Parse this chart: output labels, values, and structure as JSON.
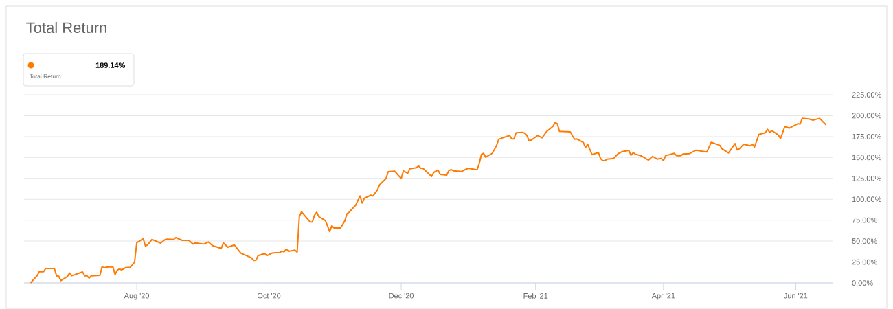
{
  "chart_data": {
    "type": "line",
    "title": "Total Return",
    "annotations": [
      "189.14%",
      "Total Return"
    ],
    "color": "#ff7a00",
    "grid": "y",
    "xlim": [
      "2020-06-10",
      "2021-06-18"
    ],
    "xticks": [
      {
        "value": "2020-08-01",
        "label": "Aug '20"
      },
      {
        "value": "2020-10-01",
        "label": "Oct '20"
      },
      {
        "value": "2020-12-01",
        "label": "Dec '20"
      },
      {
        "value": "2021-02-01",
        "label": "Feb '21"
      },
      {
        "value": "2021-04-01",
        "label": "Apr '21"
      },
      {
        "value": "2021-06-01",
        "label": "Jun '21"
      }
    ],
    "ylim": [
      0,
      225
    ],
    "yticks": [
      {
        "value": 0,
        "label": "0.00%"
      },
      {
        "value": 25,
        "label": "25.00%"
      },
      {
        "value": 50,
        "label": "50.00%"
      },
      {
        "value": 75,
        "label": "75.00%"
      },
      {
        "value": 100,
        "label": "100.00%"
      },
      {
        "value": 125,
        "label": "125.00%"
      },
      {
        "value": 150,
        "label": "150.00%"
      },
      {
        "value": 175,
        "label": "175.00%"
      },
      {
        "value": 200,
        "label": "200.00%"
      },
      {
        "value": 225,
        "label": "225.00%"
      }
    ],
    "x": [
      "2020-06-13",
      "2020-06-16",
      "2020-06-17",
      "2020-06-19",
      "2020-06-20",
      "2020-06-24",
      "2020-06-25",
      "2020-06-26",
      "2020-06-27",
      "2020-06-30",
      "2020-07-01",
      "2020-07-02",
      "2020-07-07",
      "2020-07-08",
      "2020-07-09",
      "2020-07-10",
      "2020-07-11",
      "2020-07-15",
      "2020-07-16",
      "2020-07-17",
      "2020-07-18",
      "2020-07-21",
      "2020-07-22",
      "2020-07-23",
      "2020-07-24",
      "2020-07-25",
      "2020-07-27",
      "2020-07-29",
      "2020-07-31",
      "2020-08-01",
      "2020-08-04",
      "2020-08-05",
      "2020-08-06",
      "2020-08-08",
      "2020-08-12",
      "2020-08-14",
      "2020-08-15",
      "2020-08-18",
      "2020-08-19",
      "2020-08-22",
      "2020-08-25",
      "2020-08-27",
      "2020-08-28",
      "2020-09-01",
      "2020-09-03",
      "2020-09-05",
      "2020-09-09",
      "2020-09-10",
      "2020-09-12",
      "2020-09-15",
      "2020-09-18",
      "2020-09-23",
      "2020-09-24",
      "2020-09-25",
      "2020-09-26",
      "2020-09-29",
      "2020-09-30",
      "2020-10-02",
      "2020-10-03",
      "2020-10-06",
      "2020-10-07",
      "2020-10-08",
      "2020-10-09",
      "2020-10-10",
      "2020-10-13",
      "2020-10-14",
      "2020-10-15",
      "2020-10-16",
      "2020-10-20",
      "2020-10-21",
      "2020-10-22",
      "2020-10-23",
      "2020-10-24",
      "2020-10-27",
      "2020-10-28",
      "2020-10-29",
      "2020-10-30",
      "2020-10-31",
      "2020-11-03",
      "2020-11-05",
      "2020-11-06",
      "2020-11-07",
      "2020-11-10",
      "2020-11-12",
      "2020-11-13",
      "2020-11-14",
      "2020-11-17",
      "2020-11-18",
      "2020-11-20",
      "2020-11-21",
      "2020-11-24",
      "2020-11-25",
      "2020-11-28",
      "2020-12-01",
      "2020-12-02",
      "2020-12-04",
      "2020-12-05",
      "2020-12-08",
      "2020-12-09",
      "2020-12-10",
      "2020-12-11",
      "2020-12-15",
      "2020-12-16",
      "2020-12-18",
      "2020-12-19",
      "2020-12-22",
      "2020-12-23",
      "2020-12-24",
      "2020-12-25",
      "2020-12-29",
      "2020-12-30",
      "2021-01-01",
      "2021-01-05",
      "2021-01-06",
      "2021-01-07",
      "2021-01-08",
      "2021-01-09",
      "2021-01-12",
      "2021-01-14",
      "2021-01-15",
      "2021-01-20",
      "2021-01-21",
      "2021-01-22",
      "2021-01-23",
      "2021-01-26",
      "2021-01-27",
      "2021-01-28",
      "2021-01-29",
      "2021-01-30",
      "2021-02-02",
      "2021-02-04",
      "2021-02-06",
      "2021-02-09",
      "2021-02-10",
      "2021-02-11",
      "2021-02-12",
      "2021-02-17",
      "2021-02-18",
      "2021-02-19",
      "2021-02-20",
      "2021-02-23",
      "2021-02-24",
      "2021-02-25",
      "2021-02-27",
      "2021-03-02",
      "2021-03-03",
      "2021-03-04",
      "2021-03-05",
      "2021-03-06",
      "2021-03-09",
      "2021-03-11",
      "2021-03-13",
      "2021-03-16",
      "2021-03-17",
      "2021-03-18",
      "2021-03-19",
      "2021-03-22",
      "2021-03-25",
      "2021-03-27",
      "2021-03-29",
      "2021-03-31",
      "2021-04-01",
      "2021-04-02",
      "2021-04-06",
      "2021-04-07",
      "2021-04-09",
      "2021-04-10",
      "2021-04-13",
      "2021-04-16",
      "2021-04-21",
      "2021-04-23",
      "2021-04-27",
      "2021-04-28",
      "2021-05-01",
      "2021-05-04",
      "2021-05-05",
      "2021-05-06",
      "2021-05-08",
      "2021-05-11",
      "2021-05-12",
      "2021-05-13",
      "2021-05-15",
      "2021-05-18",
      "2021-05-19",
      "2021-05-20",
      "2021-05-21",
      "2021-05-24",
      "2021-05-25",
      "2021-05-27",
      "2021-05-29",
      "2021-06-02",
      "2021-06-03",
      "2021-06-04",
      "2021-06-07",
      "2021-06-09",
      "2021-06-12",
      "2021-06-15"
    ],
    "values": [
      0,
      8.5,
      13.4,
      13.4,
      17.2,
      17.2,
      8.5,
      8,
      2.7,
      7.7,
      11.8,
      8.5,
      13.1,
      8.5,
      8.5,
      5.7,
      8.5,
      9,
      19.2,
      18.1,
      18.9,
      19.2,
      9.9,
      15.3,
      16.7,
      15.6,
      18.3,
      18.6,
      24.9,
      48.2,
      52.8,
      44.1,
      45.5,
      52,
      47.6,
      51.7,
      52.3,
      52,
      54.2,
      50.9,
      50.9,
      46.5,
      47.9,
      46.5,
      49,
      44.6,
      41.3,
      47.9,
      42.7,
      45.4,
      35.6,
      29.8,
      26.9,
      27.3,
      32.6,
      35.1,
      32.6,
      35.3,
      35.9,
      36.4,
      38,
      37.2,
      40.5,
      37.8,
      39.2,
      36.7,
      79.1,
      85.1,
      72.8,
      72.8,
      81,
      84.6,
      79.1,
      74.7,
      68.2,
      61.3,
      68.4,
      65.7,
      65.7,
      74.2,
      82.9,
      84.6,
      93,
      104,
      95.5,
      101.3,
      104.9,
      104,
      111.1,
      117.2,
      124.8,
      133,
      133.6,
      124.8,
      133.9,
      131.1,
      136.6,
      137.7,
      139.9,
      137.1,
      137.1,
      127.3,
      132.2,
      134.9,
      129.7,
      128.9,
      134.4,
      135.5,
      134.1,
      133.3,
      134.9,
      137.1,
      135.3,
      142.6,
      153.6,
      155,
      150.3,
      155,
      164.5,
      171.9,
      176.3,
      172.2,
      172.2,
      179.6,
      180.1,
      179,
      176.3,
      170,
      170.8,
      176.3,
      173.5,
      180.9,
      187.2,
      191.9,
      190.5,
      181.2,
      180.7,
      176,
      171.9,
      172.2,
      168.1,
      161.8,
      165.9,
      153.6,
      155.8,
      148.6,
      146.2,
      146.2,
      148.1,
      148.9,
      154.4,
      157.1,
      158.5,
      152.7,
      155.8,
      154.1,
      151.7,
      146.8,
      151.3,
      148.1,
      148.9,
      146.2,
      152.2,
      155,
      152.2,
      152.2,
      154.1,
      154.6,
      158.7,
      156.6,
      168.1,
      164.5,
      160.4,
      155.5,
      166.7,
      159.1,
      160.4,
      165.9,
      164,
      165.9,
      162.6,
      177.6,
      179.6,
      183.7,
      180.1,
      182.1,
      176.8,
      172.7,
      187.2,
      185,
      190.5,
      189.9,
      196.8,
      196,
      194.6,
      196.8,
      189.14
    ]
  }
}
